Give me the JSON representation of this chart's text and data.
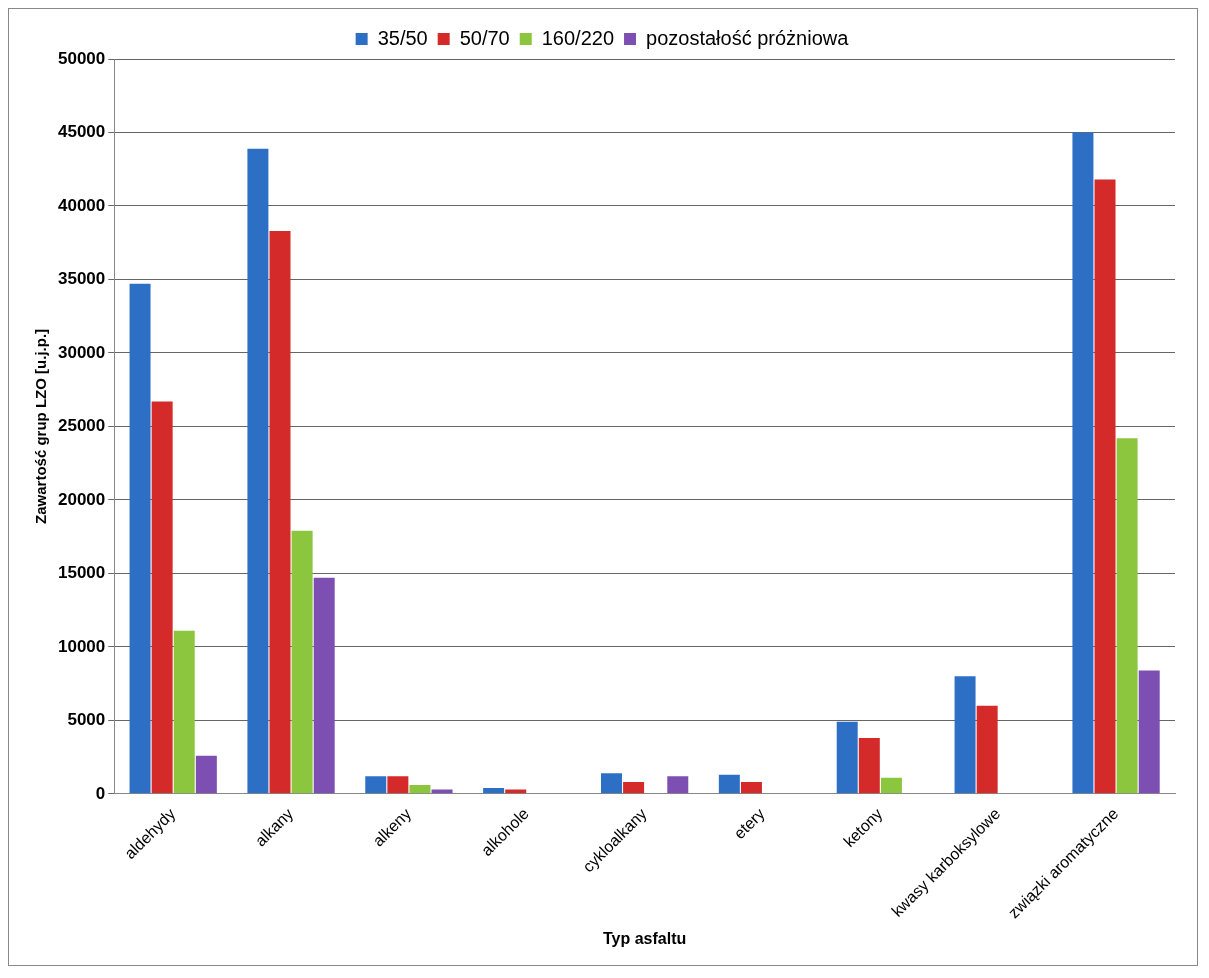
{
  "chart_data": {
    "type": "bar",
    "xlabel": "Typ asfaltu",
    "ylabel": "Zawartość grup LZO [u.j.p.]",
    "categories": [
      "aldehydy",
      "alkany",
      "alkeny",
      "alkohole",
      "cykloalkany",
      "etery",
      "ketony",
      "kwasy karboksylowe",
      "związki aromatyczne"
    ],
    "series": [
      {
        "name": "35/50",
        "color": "#2e6fc6",
        "values": [
          34700,
          43900,
          1200,
          400,
          1400,
          1300,
          4900,
          8000,
          45000
        ]
      },
      {
        "name": "50/70",
        "color": "#d42a2a",
        "values": [
          26700,
          38300,
          1200,
          300,
          800,
          800,
          3800,
          6000,
          41800
        ]
      },
      {
        "name": "160/220",
        "color": "#8cc63e",
        "values": [
          11100,
          17900,
          600,
          0,
          0,
          0,
          1100,
          0,
          24200
        ]
      },
      {
        "name": "pozostałość próżniowa",
        "color": "#7d4fb3",
        "values": [
          2600,
          14700,
          300,
          0,
          1200,
          0,
          0,
          0,
          8400
        ]
      }
    ],
    "ylim": [
      0,
      50000
    ],
    "yticks": [
      0,
      5000,
      10000,
      15000,
      20000,
      25000,
      30000,
      35000,
      40000,
      45000,
      50000
    ],
    "grid": "y",
    "legend": "top"
  }
}
